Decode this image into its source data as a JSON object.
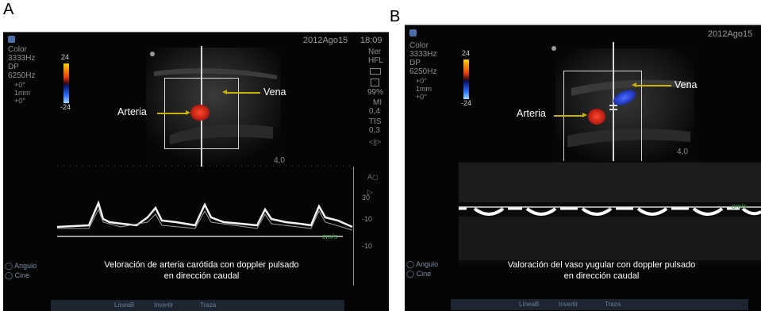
{
  "panel_a": {
    "letter": "A",
    "date": "2012Ago15",
    "time": "18:09",
    "left_params": [
      "Color",
      "3333Hz",
      "DP",
      "6250Hz",
      "+0°",
      "1mm",
      "+0°"
    ],
    "right_params": [
      "Ner",
      "HFL",
      "",
      "",
      "99%",
      "MI",
      "0,4",
      "TIS",
      "0,3"
    ],
    "scale_max": "24",
    "scale_min": "-24",
    "label_artery": "Arteria",
    "label_vein": "Vena",
    "depth": "4,0",
    "velocity_unit": "cm/s",
    "scale_ticks": [
      "30",
      "-10",
      "-10"
    ],
    "caption_line1": "Veloración de arteria carótida con doppler pulsado",
    "caption_line2": "en dirección caudal",
    "menu_items": [
      "Angulo",
      "Cine"
    ],
    "toolbar_items": [
      "LíneaB",
      "Invertir",
      "Traza"
    ]
  },
  "panel_b": {
    "letter": "B",
    "date": "2012Ago15",
    "left_params": [
      "Color",
      "3333Hz",
      "DP",
      "6250Hz",
      "+0°",
      "1mm",
      "+0°"
    ],
    "scale_max": "24",
    "scale_min": "-24",
    "label_artery": "Arteria",
    "label_vein": "Vena",
    "depth": "4,0",
    "velocity_unit": "cm/s",
    "caption_line1": "Valoración del vaso yugular con doppler pulsado",
    "caption_line2": "en dirección caudal",
    "menu_items": [
      "Angulo",
      "Cine"
    ],
    "toolbar_items": [
      "LíneaB",
      "Invertir",
      "Traza"
    ]
  }
}
